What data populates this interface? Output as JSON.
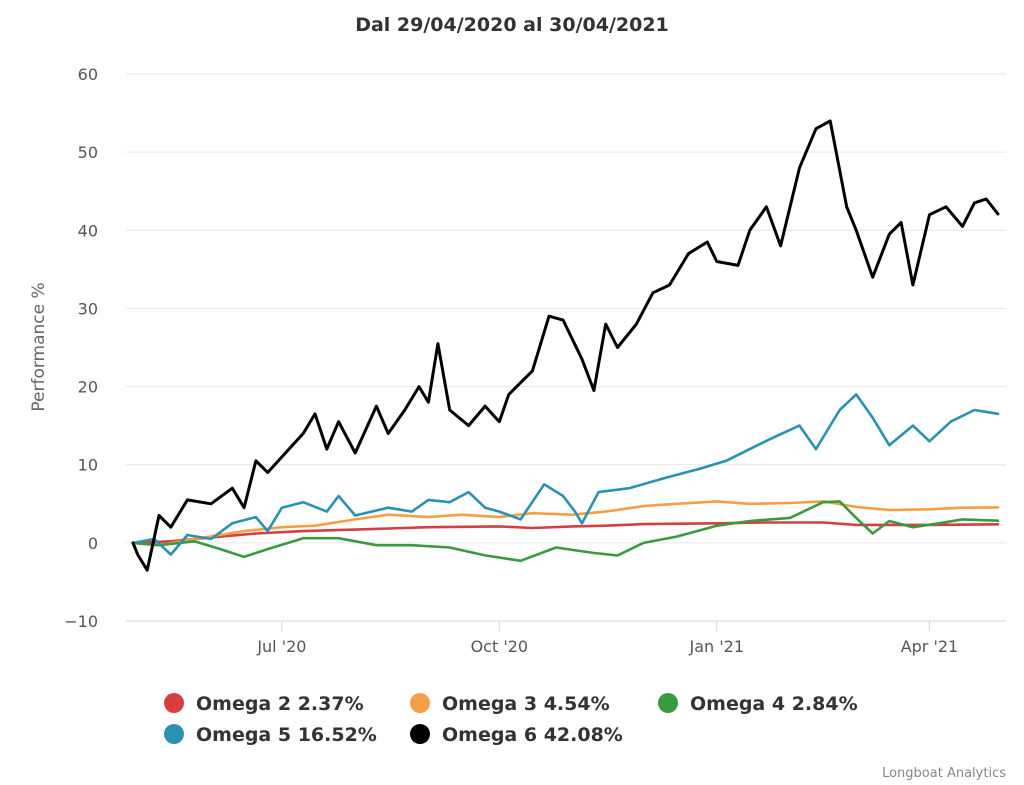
{
  "chart_data": {
    "type": "line",
    "title": "Dal 29/04/2020 al 30/04/2021",
    "xlabel": "",
    "ylabel": "Performance %",
    "x_start": "2020-04-29",
    "x_end": "2021-04-30",
    "ylim": [
      -10,
      60
    ],
    "yticks": [
      -10,
      0,
      10,
      20,
      30,
      40,
      50,
      60
    ],
    "xticks": [
      {
        "date": "2020-07-01",
        "label": "Jul '20"
      },
      {
        "date": "2020-10-01",
        "label": "Oct '20"
      },
      {
        "date": "2021-01-01",
        "label": "Jan '21"
      },
      {
        "date": "2021-04-01",
        "label": "Apr '21"
      }
    ],
    "grid": true,
    "legend_position": "bottom",
    "credits": "Longboat Analytics",
    "series": [
      {
        "name": "Omega 2",
        "legend": "Omega 2 2.37%",
        "color": "#d63f3f",
        "points": [
          [
            "2020-04-29",
            0
          ],
          [
            "2020-05-15",
            0.2
          ],
          [
            "2020-06-01",
            0.7
          ],
          [
            "2020-06-20",
            1.2
          ],
          [
            "2020-07-10",
            1.5
          ],
          [
            "2020-08-01",
            1.7
          ],
          [
            "2020-09-01",
            2.0
          ],
          [
            "2020-10-01",
            2.1
          ],
          [
            "2020-10-15",
            1.9
          ],
          [
            "2020-11-01",
            2.1
          ],
          [
            "2020-11-15",
            2.2
          ],
          [
            "2020-12-01",
            2.4
          ],
          [
            "2021-01-01",
            2.5
          ],
          [
            "2021-01-20",
            2.6
          ],
          [
            "2021-02-15",
            2.6
          ],
          [
            "2021-03-01",
            2.3
          ],
          [
            "2021-04-01",
            2.3
          ],
          [
            "2021-04-30",
            2.37
          ]
        ]
      },
      {
        "name": "Omega 3",
        "legend": "Omega 3 4.54%",
        "color": "#f59e45",
        "points": [
          [
            "2020-04-29",
            0
          ],
          [
            "2020-05-10",
            -0.3
          ],
          [
            "2020-05-25",
            0.5
          ],
          [
            "2020-06-15",
            1.5
          ],
          [
            "2020-07-01",
            2.0
          ],
          [
            "2020-07-15",
            2.2
          ],
          [
            "2020-08-01",
            3.0
          ],
          [
            "2020-08-15",
            3.6
          ],
          [
            "2020-09-01",
            3.3
          ],
          [
            "2020-09-15",
            3.6
          ],
          [
            "2020-10-01",
            3.3
          ],
          [
            "2020-10-15",
            3.8
          ],
          [
            "2020-11-01",
            3.6
          ],
          [
            "2020-11-15",
            4.0
          ],
          [
            "2020-12-01",
            4.7
          ],
          [
            "2020-12-15",
            5.0
          ],
          [
            "2021-01-01",
            5.3
          ],
          [
            "2021-01-15",
            5.0
          ],
          [
            "2021-02-01",
            5.1
          ],
          [
            "2021-02-15",
            5.3
          ],
          [
            "2021-03-01",
            4.6
          ],
          [
            "2021-03-15",
            4.2
          ],
          [
            "2021-04-01",
            4.3
          ],
          [
            "2021-04-15",
            4.5
          ],
          [
            "2021-04-30",
            4.54
          ]
        ]
      },
      {
        "name": "Omega 4",
        "legend": "Omega 4 2.84%",
        "color": "#3a9a3f",
        "points": [
          [
            "2020-04-29",
            0
          ],
          [
            "2020-05-10",
            -0.3
          ],
          [
            "2020-05-25",
            0.2
          ],
          [
            "2020-06-05",
            -0.8
          ],
          [
            "2020-06-15",
            -1.8
          ],
          [
            "2020-06-25",
            -0.8
          ],
          [
            "2020-07-10",
            0.6
          ],
          [
            "2020-07-25",
            0.6
          ],
          [
            "2020-08-10",
            -0.3
          ],
          [
            "2020-08-25",
            -0.3
          ],
          [
            "2020-09-10",
            -0.6
          ],
          [
            "2020-09-25",
            -1.6
          ],
          [
            "2020-10-10",
            -2.3
          ],
          [
            "2020-10-25",
            -0.6
          ],
          [
            "2020-11-10",
            -1.3
          ],
          [
            "2020-11-20",
            -1.6
          ],
          [
            "2020-12-01",
            0.0
          ],
          [
            "2020-12-15",
            0.8
          ],
          [
            "2021-01-01",
            2.2
          ],
          [
            "2021-01-15",
            2.8
          ],
          [
            "2021-02-01",
            3.2
          ],
          [
            "2021-02-15",
            5.2
          ],
          [
            "2021-02-22",
            5.3
          ],
          [
            "2021-03-01",
            3.2
          ],
          [
            "2021-03-08",
            1.2
          ],
          [
            "2021-03-15",
            2.8
          ],
          [
            "2021-03-25",
            2.0
          ],
          [
            "2021-04-05",
            2.5
          ],
          [
            "2021-04-15",
            3.0
          ],
          [
            "2021-04-30",
            2.84
          ]
        ]
      },
      {
        "name": "Omega 5",
        "legend": "Omega 5 16.52%",
        "color": "#2b91b1",
        "points": [
          [
            "2020-04-29",
            0
          ],
          [
            "2020-05-08",
            0.5
          ],
          [
            "2020-05-15",
            -1.5
          ],
          [
            "2020-05-22",
            1.0
          ],
          [
            "2020-06-01",
            0.5
          ],
          [
            "2020-06-10",
            2.5
          ],
          [
            "2020-06-20",
            3.3
          ],
          [
            "2020-06-25",
            1.5
          ],
          [
            "2020-07-01",
            4.5
          ],
          [
            "2020-07-10",
            5.2
          ],
          [
            "2020-07-20",
            4.0
          ],
          [
            "2020-07-25",
            6.0
          ],
          [
            "2020-08-01",
            3.5
          ],
          [
            "2020-08-15",
            4.5
          ],
          [
            "2020-08-25",
            4.0
          ],
          [
            "2020-09-01",
            5.5
          ],
          [
            "2020-09-10",
            5.2
          ],
          [
            "2020-09-18",
            6.5
          ],
          [
            "2020-09-25",
            4.5
          ],
          [
            "2020-10-01",
            4.0
          ],
          [
            "2020-10-10",
            3.0
          ],
          [
            "2020-10-20",
            7.5
          ],
          [
            "2020-10-28",
            6.0
          ],
          [
            "2020-11-02",
            4.0
          ],
          [
            "2020-11-05",
            2.5
          ],
          [
            "2020-11-12",
            6.5
          ],
          [
            "2020-11-25",
            7.0
          ],
          [
            "2020-12-10",
            8.3
          ],
          [
            "2020-12-25",
            9.5
          ],
          [
            "2021-01-05",
            10.5
          ],
          [
            "2021-01-15",
            12.0
          ],
          [
            "2021-01-25",
            13.5
          ],
          [
            "2021-02-05",
            15.0
          ],
          [
            "2021-02-12",
            12.0
          ],
          [
            "2021-02-22",
            17.0
          ],
          [
            "2021-03-01",
            19.0
          ],
          [
            "2021-03-08",
            16.0
          ],
          [
            "2021-03-15",
            12.5
          ],
          [
            "2021-03-25",
            15.0
          ],
          [
            "2021-04-01",
            13.0
          ],
          [
            "2021-04-10",
            15.5
          ],
          [
            "2021-04-20",
            17.0
          ],
          [
            "2021-04-30",
            16.52
          ]
        ]
      },
      {
        "name": "Omega 6",
        "legend": "Omega 6 42.08%",
        "color": "#000000",
        "points": [
          [
            "2020-04-29",
            0
          ],
          [
            "2020-05-01",
            -1.5
          ],
          [
            "2020-05-05",
            -3.5
          ],
          [
            "2020-05-10",
            3.5
          ],
          [
            "2020-05-15",
            2.0
          ],
          [
            "2020-05-22",
            5.5
          ],
          [
            "2020-06-01",
            5.0
          ],
          [
            "2020-06-10",
            7.0
          ],
          [
            "2020-06-15",
            4.5
          ],
          [
            "2020-06-20",
            10.5
          ],
          [
            "2020-06-25",
            9.0
          ],
          [
            "2020-07-01",
            11.0
          ],
          [
            "2020-07-10",
            14.0
          ],
          [
            "2020-07-15",
            16.5
          ],
          [
            "2020-07-20",
            12.0
          ],
          [
            "2020-07-25",
            15.5
          ],
          [
            "2020-08-01",
            11.5
          ],
          [
            "2020-08-10",
            17.5
          ],
          [
            "2020-08-15",
            14.0
          ],
          [
            "2020-08-22",
            17.0
          ],
          [
            "2020-08-28",
            20.0
          ],
          [
            "2020-09-01",
            18.0
          ],
          [
            "2020-09-05",
            25.5
          ],
          [
            "2020-09-10",
            17.0
          ],
          [
            "2020-09-18",
            15.0
          ],
          [
            "2020-09-25",
            17.5
          ],
          [
            "2020-10-01",
            15.5
          ],
          [
            "2020-10-05",
            19.0
          ],
          [
            "2020-10-15",
            22.0
          ],
          [
            "2020-10-22",
            29.0
          ],
          [
            "2020-10-28",
            28.5
          ],
          [
            "2020-11-05",
            23.5
          ],
          [
            "2020-11-10",
            19.5
          ],
          [
            "2020-11-15",
            28.0
          ],
          [
            "2020-11-20",
            25.0
          ],
          [
            "2020-11-28",
            28.0
          ],
          [
            "2020-12-05",
            32.0
          ],
          [
            "2020-12-12",
            33.0
          ],
          [
            "2020-12-20",
            37.0
          ],
          [
            "2020-12-28",
            38.5
          ],
          [
            "2021-01-01",
            36.0
          ],
          [
            "2021-01-10",
            35.5
          ],
          [
            "2021-01-15",
            40.0
          ],
          [
            "2021-01-22",
            43.0
          ],
          [
            "2021-01-28",
            38.0
          ],
          [
            "2021-02-05",
            48.0
          ],
          [
            "2021-02-12",
            53.0
          ],
          [
            "2021-02-18",
            54.0
          ],
          [
            "2021-02-25",
            43.0
          ],
          [
            "2021-03-01",
            40.0
          ],
          [
            "2021-03-08",
            34.0
          ],
          [
            "2021-03-15",
            39.5
          ],
          [
            "2021-03-20",
            41.0
          ],
          [
            "2021-03-25",
            33.0
          ],
          [
            "2021-04-01",
            42.0
          ],
          [
            "2021-04-08",
            43.0
          ],
          [
            "2021-04-15",
            40.5
          ],
          [
            "2021-04-20",
            43.5
          ],
          [
            "2021-04-25",
            44.0
          ],
          [
            "2021-04-30",
            42.08
          ]
        ]
      }
    ]
  }
}
